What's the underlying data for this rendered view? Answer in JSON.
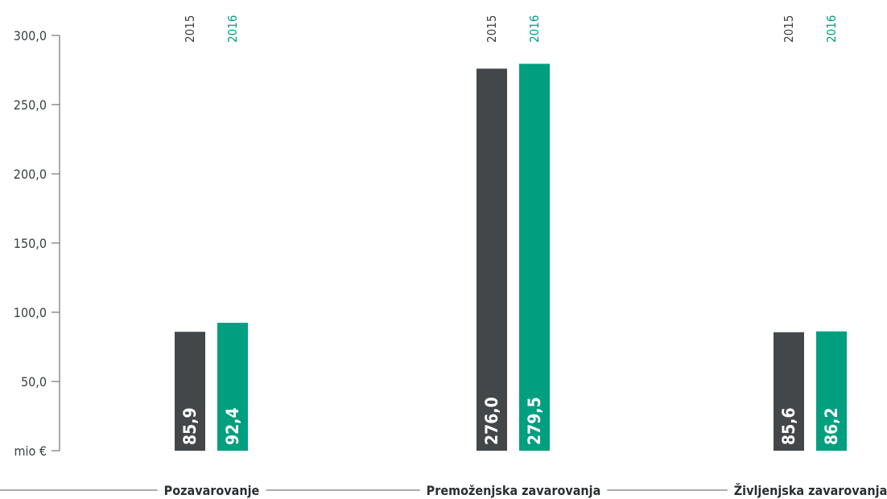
{
  "colors": {
    "series_2015": "#44474a",
    "series_2016": "#009f80",
    "axis": "#555a5e",
    "text": "#3b3f42"
  },
  "chart_data": {
    "type": "bar",
    "categories": [
      "Pozavarovanje",
      "Premoženjska zavarovanja",
      "Življenjska zavarovanja"
    ],
    "series": [
      {
        "name": "2015",
        "values": [
          85.9,
          276.0,
          85.6
        ],
        "labels": [
          "85,9",
          "276,0",
          "85,6"
        ]
      },
      {
        "name": "2016",
        "values": [
          92.4,
          279.5,
          86.2
        ],
        "labels": [
          "92,4",
          "279,5",
          "86,2"
        ]
      }
    ],
    "y_ticks": [
      {
        "value": 0,
        "label": "mio €"
      },
      {
        "value": 50,
        "label": "50,0"
      },
      {
        "value": 100,
        "label": "100,0"
      },
      {
        "value": 150,
        "label": "150,0"
      },
      {
        "value": 200,
        "label": "200,0"
      },
      {
        "value": 250,
        "label": "250,0"
      },
      {
        "value": 300,
        "label": "300,0"
      }
    ],
    "ylim": [
      0,
      300
    ],
    "grid": false,
    "legend": "rotated year labels above each bar"
  }
}
